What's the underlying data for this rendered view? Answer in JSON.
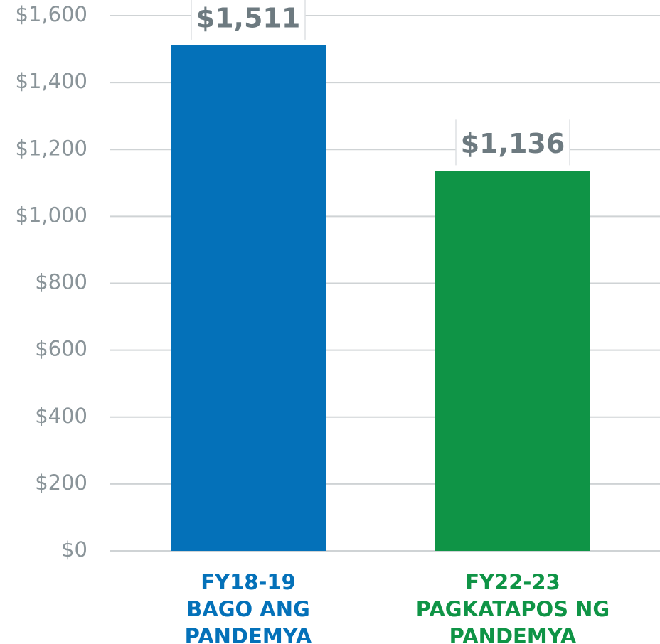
{
  "chart_data": {
    "type": "bar",
    "categories": [
      "FY18-19\nBAGO ANG\nPANDEMYA",
      "FY22-23\nPAGKATAPOS NG\nPANDEMYA"
    ],
    "values": [
      1511,
      1136
    ],
    "value_labels": [
      "$1,511",
      "$1,136"
    ],
    "colors": [
      "#0471b9",
      "#0f9446"
    ],
    "ylim": [
      0,
      1600
    ],
    "yticks": [
      {
        "value": 0,
        "label": "$0"
      },
      {
        "value": 200,
        "label": "$200"
      },
      {
        "value": 400,
        "label": "$400"
      },
      {
        "value": 600,
        "label": "$600"
      },
      {
        "value": 800,
        "label": "$800"
      },
      {
        "value": 1000,
        "label": "$1,000"
      },
      {
        "value": 1200,
        "label": "$1,200"
      },
      {
        "value": 1400,
        "label": "$1,400"
      },
      {
        "value": 1600,
        "label": "$1,600"
      }
    ],
    "grid": true
  }
}
